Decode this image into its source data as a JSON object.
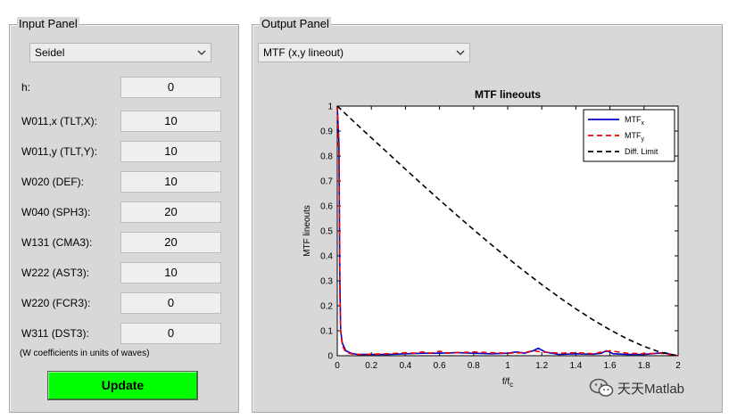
{
  "input_panel": {
    "title": "Input Panel",
    "dropdown": {
      "selected": "Seidel"
    },
    "params": [
      {
        "label": "h:",
        "value": "0"
      },
      {
        "label": "W011,x (TLT,X):",
        "value": "10"
      },
      {
        "label": "W011,y (TLT,Y):",
        "value": "10"
      },
      {
        "label": "W020 (DEF):",
        "value": "10"
      },
      {
        "label": "W040 (SPH3):",
        "value": "20"
      },
      {
        "label": "W131 (CMA3):",
        "value": "20"
      },
      {
        "label": "W222 (AST3):",
        "value": "10"
      },
      {
        "label": "W220 (FCR3):",
        "value": "0"
      },
      {
        "label": "W311 (DST3):",
        "value": "0"
      }
    ],
    "note": "(W coefficients in units of waves)",
    "update_label": "Update"
  },
  "output_panel": {
    "title": "Output Panel",
    "dropdown": {
      "selected": "MTF (x,y lineout)"
    }
  },
  "chart_data": {
    "type": "line",
    "title": "MTF lineouts",
    "xlabel": "f/f",
    "xlabel_sub": "c",
    "ylabel": "MTF lineouts",
    "xlim": [
      0,
      2
    ],
    "ylim": [
      0,
      1
    ],
    "xticks": [
      0,
      0.2,
      0.4,
      0.6,
      0.8,
      1,
      1.2,
      1.4,
      1.6,
      1.8,
      2
    ],
    "yticks": [
      0,
      0.1,
      0.2,
      0.3,
      0.4,
      0.5,
      0.6,
      0.7,
      0.8,
      0.9,
      1
    ],
    "xtick_labels": [
      "0",
      "0.2",
      "0.4",
      "0.6",
      "0.8",
      "1",
      "1.2",
      "1.4",
      "1.6",
      "1.8",
      "2"
    ],
    "ytick_labels": [
      "0",
      "0.1",
      "0.2",
      "0.3",
      "0.4",
      "0.5",
      "0.6",
      "0.7",
      "0.8",
      "0.9",
      "1"
    ],
    "legend_position": "top-right",
    "series": [
      {
        "name": "MTF",
        "name_sub": "x",
        "color": "#0000cc",
        "dash": "solid",
        "x": [
          0,
          0.01,
          0.015,
          0.02,
          0.03,
          0.05,
          0.08,
          0.12,
          0.2,
          0.3,
          0.4,
          0.5,
          0.6,
          0.7,
          0.8,
          0.9,
          1.0,
          1.05,
          1.1,
          1.15,
          1.18,
          1.22,
          1.3,
          1.4,
          1.5,
          1.55,
          1.58,
          1.62,
          1.7,
          1.8,
          1.88,
          1.92,
          1.96,
          2.0
        ],
        "y": [
          1.0,
          0.85,
          0.3,
          0.1,
          0.05,
          0.02,
          0.01,
          0.005,
          0.005,
          0.005,
          0.008,
          0.01,
          0.01,
          0.012,
          0.01,
          0.008,
          0.01,
          0.015,
          0.01,
          0.02,
          0.03,
          0.015,
          0.005,
          0.008,
          0.006,
          0.01,
          0.02,
          0.008,
          0.005,
          0.005,
          0.01,
          0.012,
          0.005,
          0.0
        ]
      },
      {
        "name": "MTF",
        "name_sub": "y",
        "color": "#ee0000",
        "dash": "dashed",
        "x": [
          0,
          0.01,
          0.015,
          0.02,
          0.03,
          0.05,
          0.08,
          0.12,
          0.2,
          0.3,
          0.4,
          0.45,
          0.5,
          0.55,
          0.6,
          0.65,
          0.7,
          0.8,
          0.9,
          1.0,
          1.1,
          1.15,
          1.2,
          1.3,
          1.4,
          1.5,
          1.6,
          1.7,
          1.8,
          1.9,
          2.0
        ],
        "y": [
          1.0,
          0.8,
          0.25,
          0.1,
          0.04,
          0.015,
          0.008,
          0.005,
          0.006,
          0.008,
          0.012,
          0.01,
          0.015,
          0.01,
          0.018,
          0.01,
          0.012,
          0.015,
          0.012,
          0.01,
          0.012,
          0.02,
          0.015,
          0.01,
          0.012,
          0.008,
          0.02,
          0.01,
          0.008,
          0.01,
          0.0
        ]
      },
      {
        "name": "Diff. Limit",
        "color": "#000000",
        "dash": "dashed",
        "x": [
          0,
          0.1,
          0.2,
          0.3,
          0.4,
          0.5,
          0.6,
          0.7,
          0.8,
          0.9,
          1.0,
          1.1,
          1.2,
          1.3,
          1.4,
          1.5,
          1.6,
          1.7,
          1.8,
          1.9,
          2.0
        ],
        "y": [
          1.0,
          0.936,
          0.873,
          0.81,
          0.747,
          0.685,
          0.624,
          0.564,
          0.505,
          0.447,
          0.391,
          0.337,
          0.285,
          0.235,
          0.188,
          0.144,
          0.104,
          0.068,
          0.037,
          0.013,
          0.0
        ]
      }
    ]
  },
  "watermark": {
    "text": "天天Matlab",
    "icon": "wechat-icon"
  }
}
